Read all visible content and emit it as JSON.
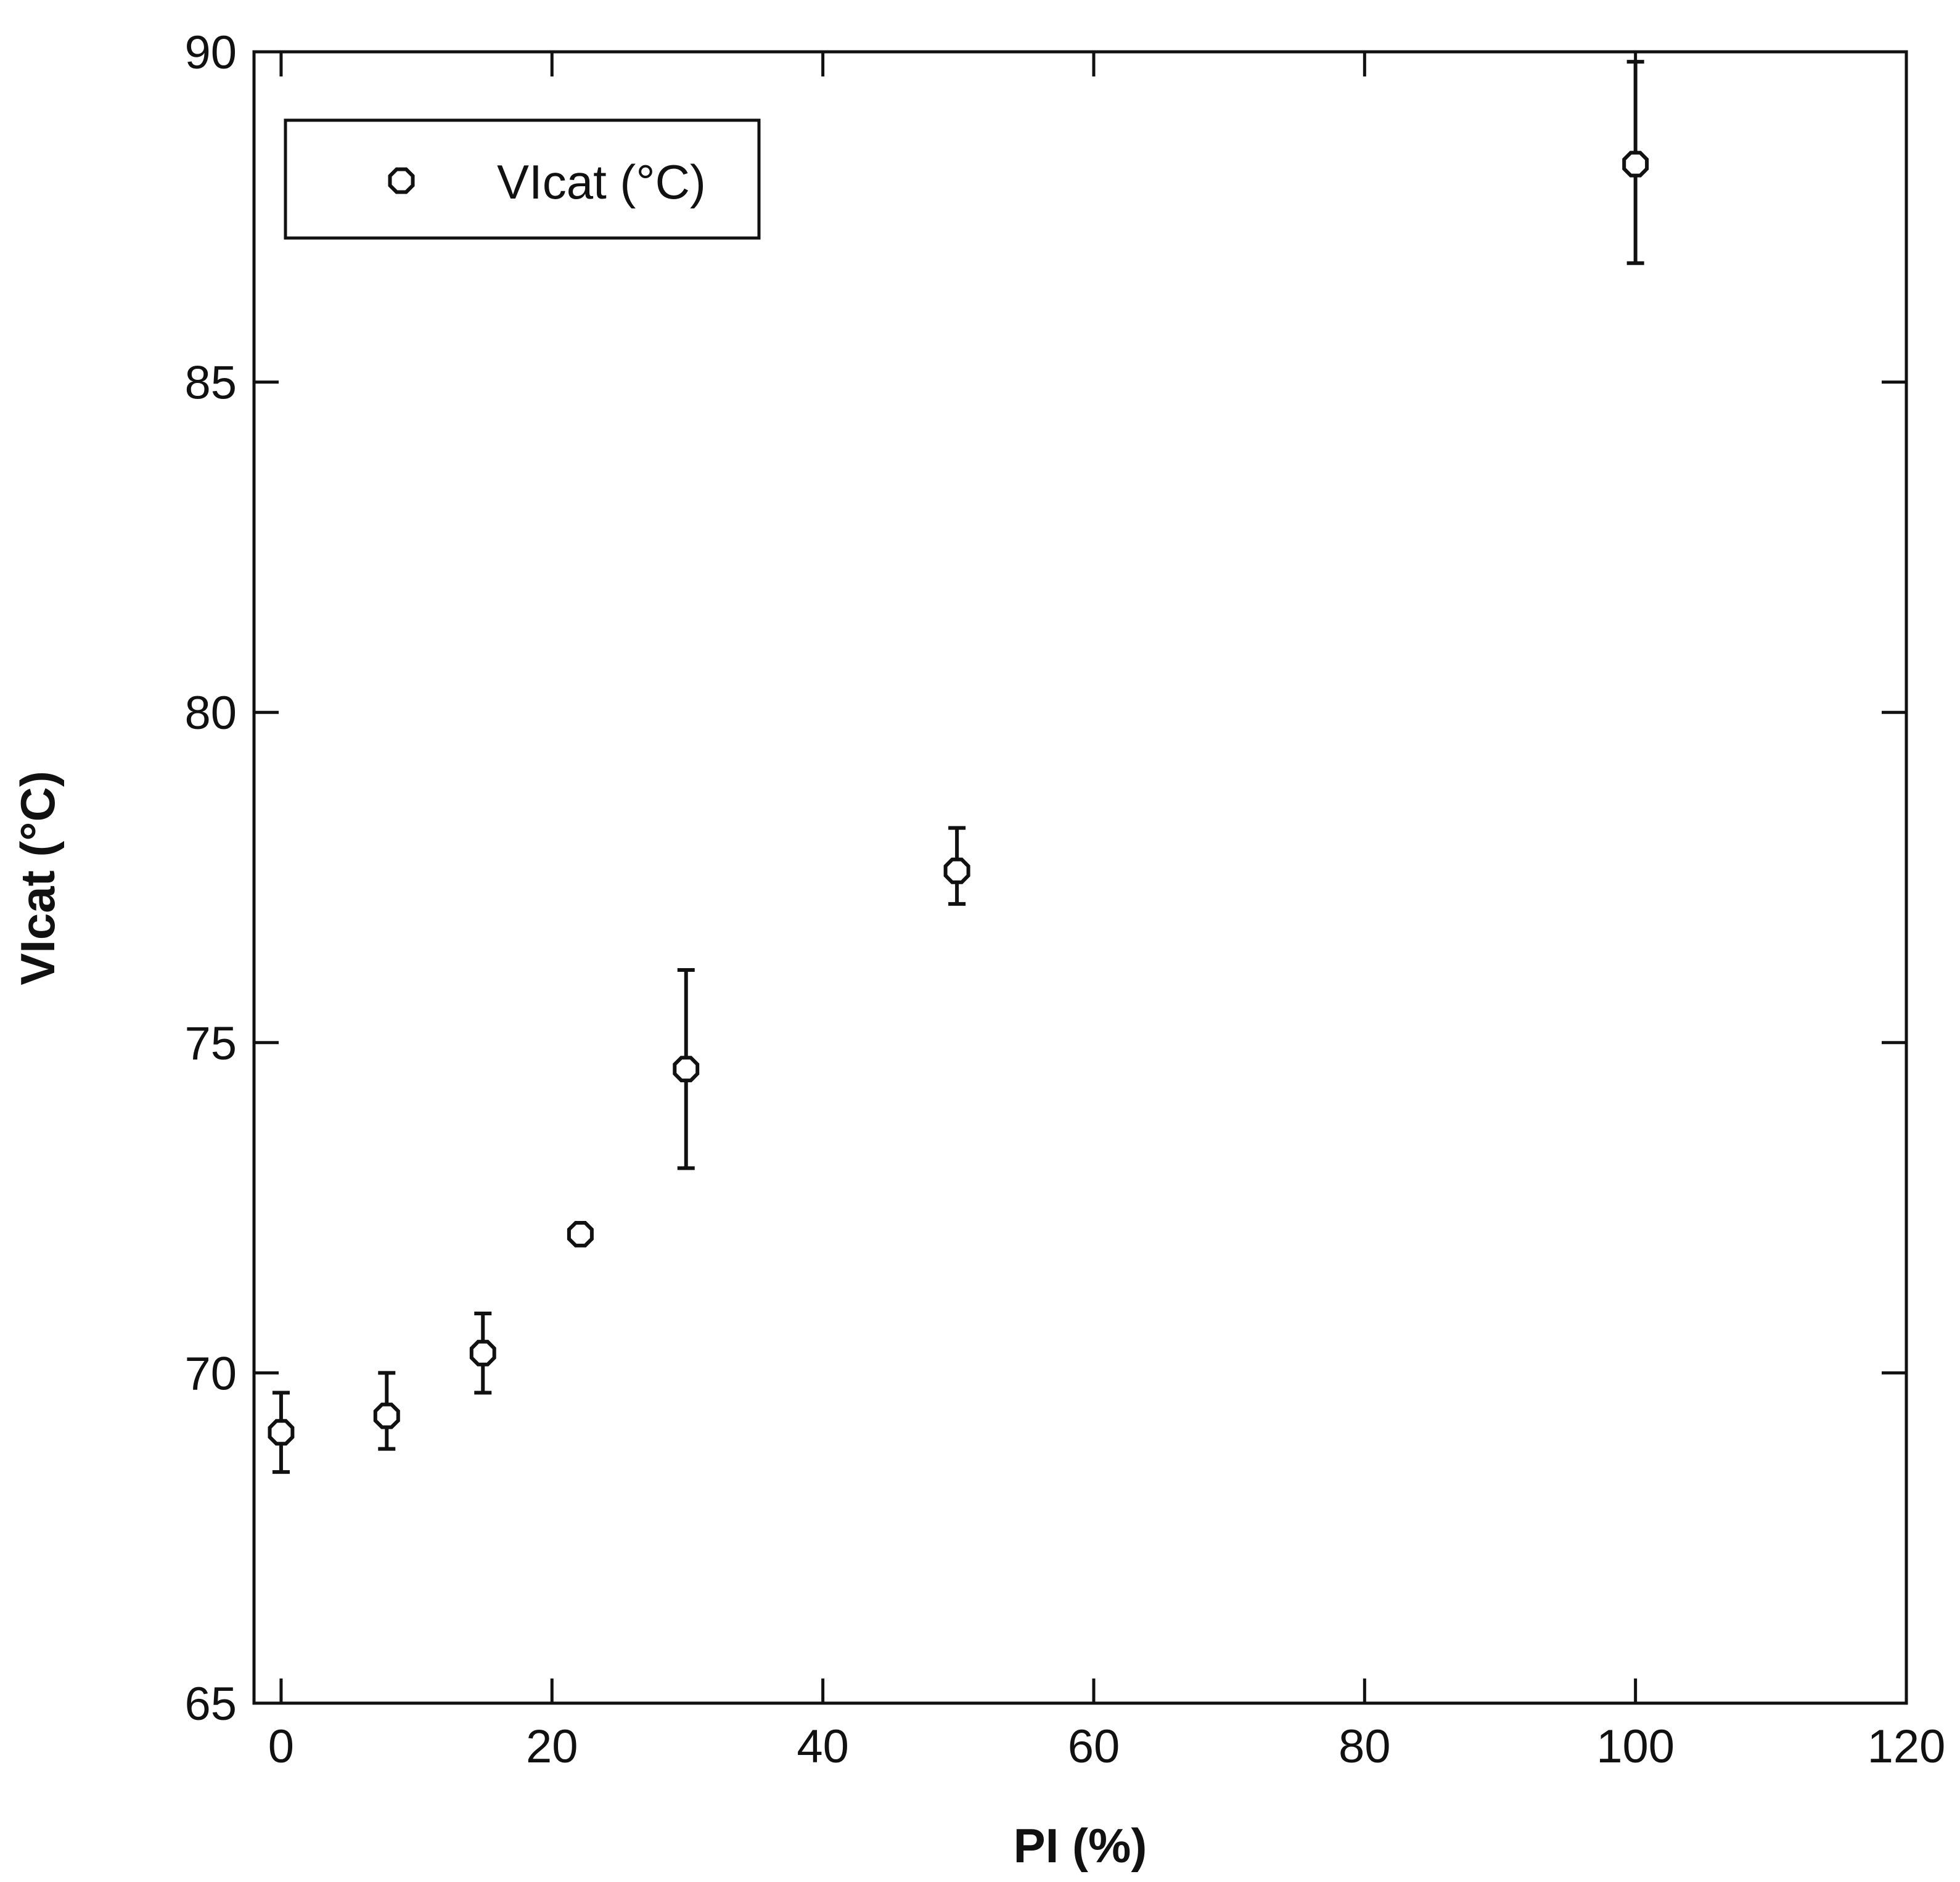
{
  "chart_data": {
    "type": "scatter",
    "title": "",
    "xlabel": "PI (%)",
    "ylabel": "VIcat (°C)",
    "xlim": [
      -2,
      120
    ],
    "ylim": [
      65,
      90
    ],
    "x_ticks": [
      0,
      20,
      40,
      60,
      80,
      100,
      120
    ],
    "y_ticks": [
      65,
      70,
      75,
      80,
      85,
      90
    ],
    "grid": false,
    "legend_position": "top-left",
    "series": [
      {
        "name": "VIcat (°C)",
        "marker": "open-octagon",
        "color": "#111111",
        "points": [
          {
            "x": 0,
            "y": 69.1,
            "err_low": 68.5,
            "err_high": 69.7
          },
          {
            "x": 7.8,
            "y": 69.35,
            "err_low": 68.85,
            "err_high": 70.0
          },
          {
            "x": 14.9,
            "y": 70.3,
            "err_low": 69.7,
            "err_high": 70.9
          },
          {
            "x": 22.1,
            "y": 72.1,
            "err_low": 72.1,
            "err_high": 72.1
          },
          {
            "x": 29.9,
            "y": 74.6,
            "err_low": 73.1,
            "err_high": 76.1
          },
          {
            "x": 49.9,
            "y": 77.6,
            "err_low": 77.1,
            "err_high": 78.25
          },
          {
            "x": 100,
            "y": 88.3,
            "err_low": 86.8,
            "err_high": 89.85
          }
        ]
      }
    ]
  }
}
